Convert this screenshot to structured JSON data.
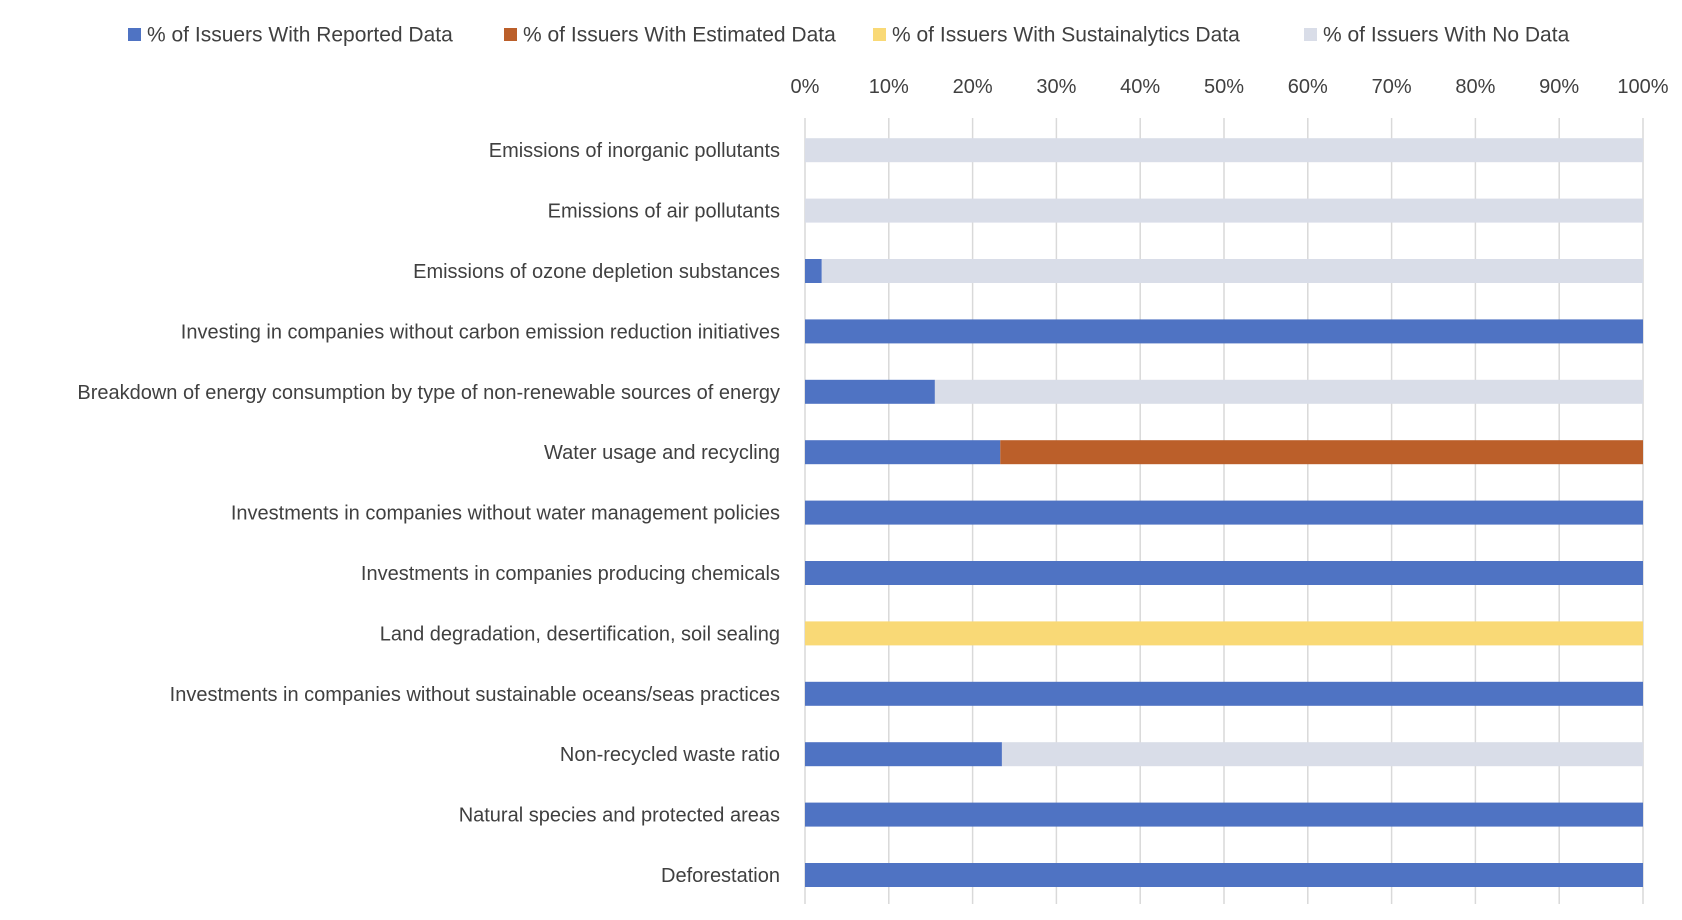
{
  "chart_data": {
    "type": "bar",
    "orientation": "horizontal",
    "stacked": true,
    "title": "",
    "xlabel": "",
    "ylabel": "",
    "xlim": [
      0,
      100
    ],
    "x_axis_position": "top",
    "legend_position": "top",
    "grid": true,
    "ticks": [
      "0%",
      "10%",
      "20%",
      "30%",
      "40%",
      "50%",
      "60%",
      "70%",
      "80%",
      "90%",
      "100%"
    ],
    "categories": [
      "Emissions of inorganic pollutants",
      "Emissions of air pollutants",
      "Emissions of ozone depletion substances",
      "Investing in companies without carbon emission reduction initiatives",
      "Breakdown of energy consumption by type of non-renewable sources of energy",
      "Water usage and recycling",
      "Investments in companies without water management policies",
      "Investments in companies producing chemicals",
      "Land degradation, desertification, soil sealing",
      "Investments in companies without sustainable oceans/seas practices",
      "Non-recycled waste ratio",
      "Natural species and protected areas",
      "Deforestation"
    ],
    "series": [
      {
        "name": "% of Issuers With Reported Data",
        "color": "#4f73c3",
        "values": [
          0,
          0,
          2,
          100,
          15.5,
          23.3,
          100,
          100,
          0,
          100,
          23.5,
          100,
          100
        ]
      },
      {
        "name": "% of Issuers With Estimated Data",
        "color": "#bb5f2a",
        "values": [
          0,
          0,
          0,
          0,
          0,
          76.7,
          0,
          0,
          0,
          0,
          0,
          0,
          0
        ]
      },
      {
        "name": "% of Issuers With Sustainalytics Data",
        "color": "#f9d976",
        "values": [
          0,
          0,
          0,
          0,
          0,
          0,
          0,
          0,
          100,
          0,
          0,
          0,
          0
        ]
      },
      {
        "name": "% of Issuers With No Data",
        "color": "#d9dde8",
        "values": [
          100,
          100,
          98,
          0,
          84.5,
          0,
          0,
          0,
          0,
          0,
          76.5,
          0,
          0
        ]
      }
    ]
  }
}
